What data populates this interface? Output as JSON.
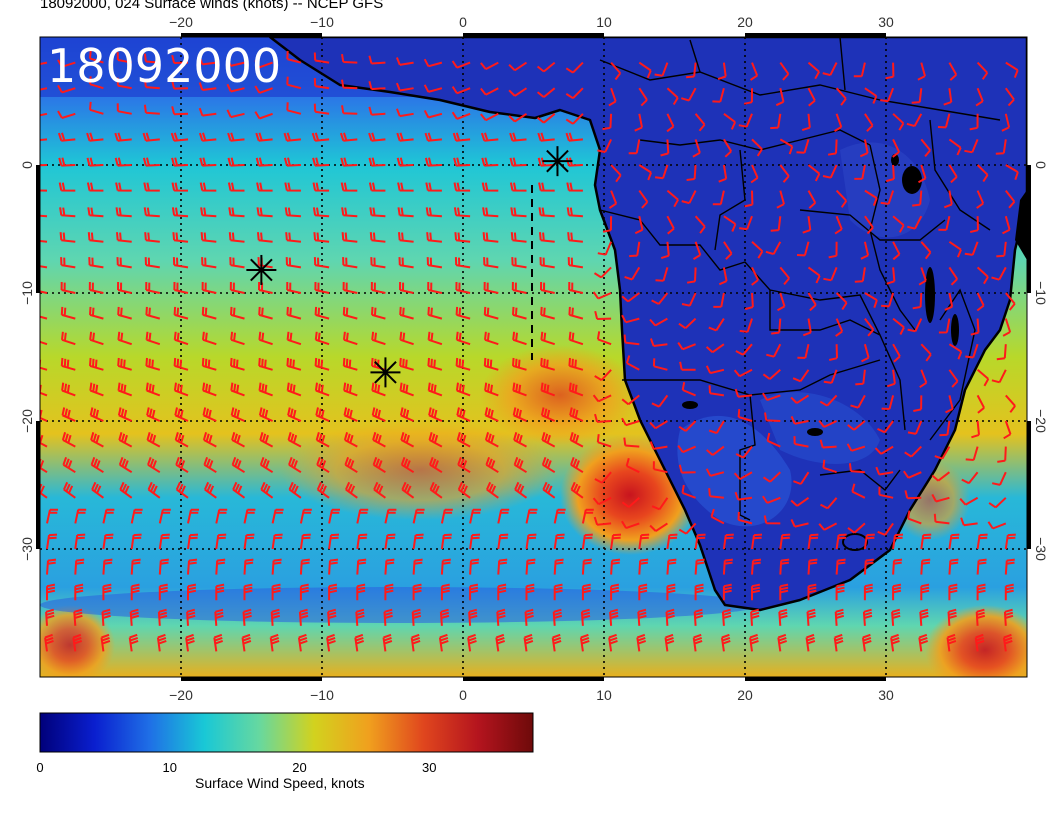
{
  "title": "18092000, 024 Surface winds (knots) -- NCEP GFS",
  "timestamp_overlay": "18092000",
  "map": {
    "lon_range": [
      -30,
      40
    ],
    "lat_range": [
      -40,
      10
    ],
    "lon_ticks": [
      "−20",
      "−10",
      "0",
      "10",
      "20",
      "30"
    ],
    "lat_ticks": [
      "0",
      "−10",
      "−20",
      "−30"
    ],
    "gridlines": true,
    "barb_color": "#ff1a1a",
    "storm_markers": [
      {
        "lon": 6.7,
        "lat": 0.3
      },
      {
        "lon": -14.3,
        "lat": -8.2
      },
      {
        "lon": -5.5,
        "lat": -16.2
      }
    ]
  },
  "colorbar": {
    "label": "Surface Wind Speed, knots",
    "range": [
      0,
      38
    ],
    "ticks": [
      "0",
      "10",
      "20",
      "30"
    ],
    "tick_values": [
      0,
      10,
      20,
      30
    ],
    "colors": [
      "#00007a",
      "#0a1fcf",
      "#1f6fe6",
      "#19c8d6",
      "#66d8a0",
      "#d2d21e",
      "#f0a01e",
      "#e0461e",
      "#b4141e",
      "#6e0a0a"
    ]
  }
}
